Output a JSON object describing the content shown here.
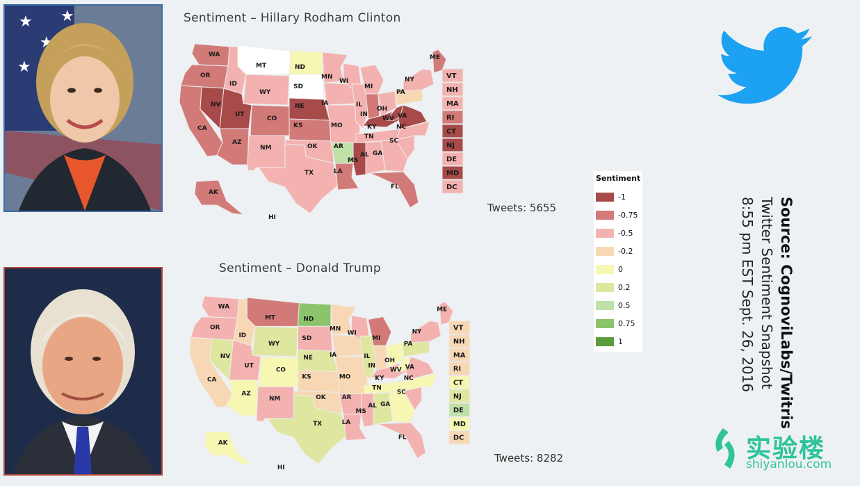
{
  "panels": {
    "clinton": {
      "title": "Sentiment – Hillary Rodham Clinton",
      "tweets": "Tweets: 5655",
      "states": {
        "WA": -0.75,
        "OR": -0.75,
        "CA": -0.75,
        "NV": -1,
        "ID": -0.5,
        "MT": null,
        "WY": -0.5,
        "UT": -1,
        "AZ": -0.75,
        "CO": -0.75,
        "NM": -0.5,
        "ND": 0,
        "SD": null,
        "NE": -1,
        "KS": -0.75,
        "OK": -0.5,
        "TX": -0.5,
        "MN": -0.5,
        "IA": -0.5,
        "MO": -0.5,
        "AR": 0.5,
        "LA": -0.75,
        "WI": -0.5,
        "IL": -0.5,
        "MS": -1,
        "MI": -0.5,
        "IN": -0.75,
        "OH": -0.5,
        "KY": -1,
        "TN": -0.5,
        "AL": -0.5,
        "GA": -0.5,
        "FL": -0.75,
        "SC": -0.5,
        "NC": -0.5,
        "VA": -1,
        "WV": -1,
        "PA": -0.2,
        "NY": -0.5,
        "ME": -0.75,
        "AK": -0.75,
        "HI": null
      },
      "ne_states": [
        {
          "code": "VT",
          "value": -0.5
        },
        {
          "code": "NH",
          "value": -0.5
        },
        {
          "code": "MA",
          "value": -0.5
        },
        {
          "code": "RI",
          "value": -0.75
        },
        {
          "code": "CT",
          "value": -1
        },
        {
          "code": "NJ",
          "value": -1
        },
        {
          "code": "DE",
          "value": -0.5
        },
        {
          "code": "MD",
          "value": -1
        },
        {
          "code": "DC",
          "value": -0.5
        }
      ]
    },
    "trump": {
      "title": "Sentiment – Donald Trump",
      "tweets": "Tweets: 8282",
      "states": {
        "WA": -0.5,
        "OR": -0.5,
        "CA": -0.2,
        "NV": 0.2,
        "ID": -0.2,
        "MT": -0.75,
        "WY": 0.2,
        "UT": -0.5,
        "AZ": 0,
        "CO": 0,
        "NM": -0.5,
        "ND": 0.75,
        "SD": -0.5,
        "NE": 0.2,
        "KS": -0.2,
        "OK": -0.2,
        "TX": 0.2,
        "MN": -0.2,
        "IA": -0.2,
        "MO": -0.2,
        "AR": -0.5,
        "LA": -0.5,
        "WI": -0.5,
        "IL": 0.2,
        "MS": -0.5,
        "MI": -0.75,
        "IN": -0.2,
        "OH": 0,
        "KY": -0.5,
        "TN": 0,
        "AL": 0.2,
        "GA": 0,
        "FL": -0.5,
        "SC": -0.5,
        "NC": 0,
        "VA": -0.5,
        "WV": 0,
        "PA": 0.2,
        "NY": -0.5,
        "ME": -0.5,
        "AK": 0,
        "HI": null
      },
      "ne_states": [
        {
          "code": "VT",
          "value": -0.2
        },
        {
          "code": "NH",
          "value": -0.2
        },
        {
          "code": "MA",
          "value": -0.2
        },
        {
          "code": "RI",
          "value": -0.2
        },
        {
          "code": "CT",
          "value": 0
        },
        {
          "code": "NJ",
          "value": 0.2
        },
        {
          "code": "DE",
          "value": 0.5
        },
        {
          "code": "MD",
          "value": 0
        },
        {
          "code": "DC",
          "value": -0.2
        }
      ]
    }
  },
  "legend": {
    "title": "Sentiment",
    "items": [
      {
        "label": "-1",
        "value": -1,
        "color": "#a84a4a"
      },
      {
        "label": "-0.75",
        "value": -0.75,
        "color": "#d27a78"
      },
      {
        "label": "-0.5",
        "value": -0.5,
        "color": "#f3b2b0"
      },
      {
        "label": "-0.2",
        "value": -0.2,
        "color": "#f8d8b4"
      },
      {
        "label": "0",
        "value": 0,
        "color": "#f7f7b4"
      },
      {
        "label": "0.2",
        "value": 0.2,
        "color": "#dfe6a0"
      },
      {
        "label": "0.5",
        "value": 0.5,
        "color": "#bfe1a8"
      },
      {
        "label": "0.75",
        "value": 0.75,
        "color": "#8cc46c"
      },
      {
        "label": "1",
        "value": 1,
        "color": "#5a9b3c"
      }
    ],
    "no_data_color": "#ffffff"
  },
  "source": {
    "line1": "Source: CognoviLabs/Twitris",
    "line2": "Twitter Sentiment Snapshot",
    "line3": "8:55 pm EST Sept. 26, 2016"
  },
  "watermark": {
    "zh": "实验楼",
    "en": "shiyanlou.com"
  },
  "icons": {
    "twitter": "twitter-bird-icon",
    "watermark": "shiyanlou-logo-icon"
  }
}
